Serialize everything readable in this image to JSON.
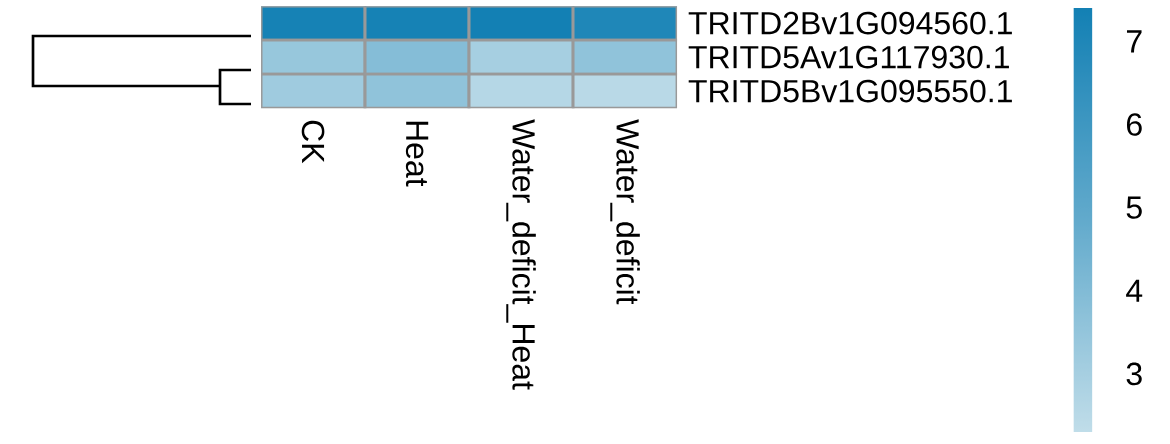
{
  "chart_data": {
    "type": "heatmap",
    "categories": [
      "CK",
      "Heat",
      "Water_deficit_Heat",
      "Water_deficit"
    ],
    "y_categories": [
      "TRITD2Bv1G094560.1",
      "TRITD5Av1G117930.1",
      "TRITD5Bv1G095550.1"
    ],
    "cells": [
      [
        7.3,
        7.3,
        7.4,
        7.0
      ],
      [
        3.4,
        3.9,
        3.0,
        3.6
      ],
      [
        3.2,
        3.6,
        2.6,
        2.5
      ]
    ],
    "clim": [
      2.3,
      7.4
    ],
    "cticks": [
      3,
      4,
      5,
      6,
      7
    ]
  }
}
